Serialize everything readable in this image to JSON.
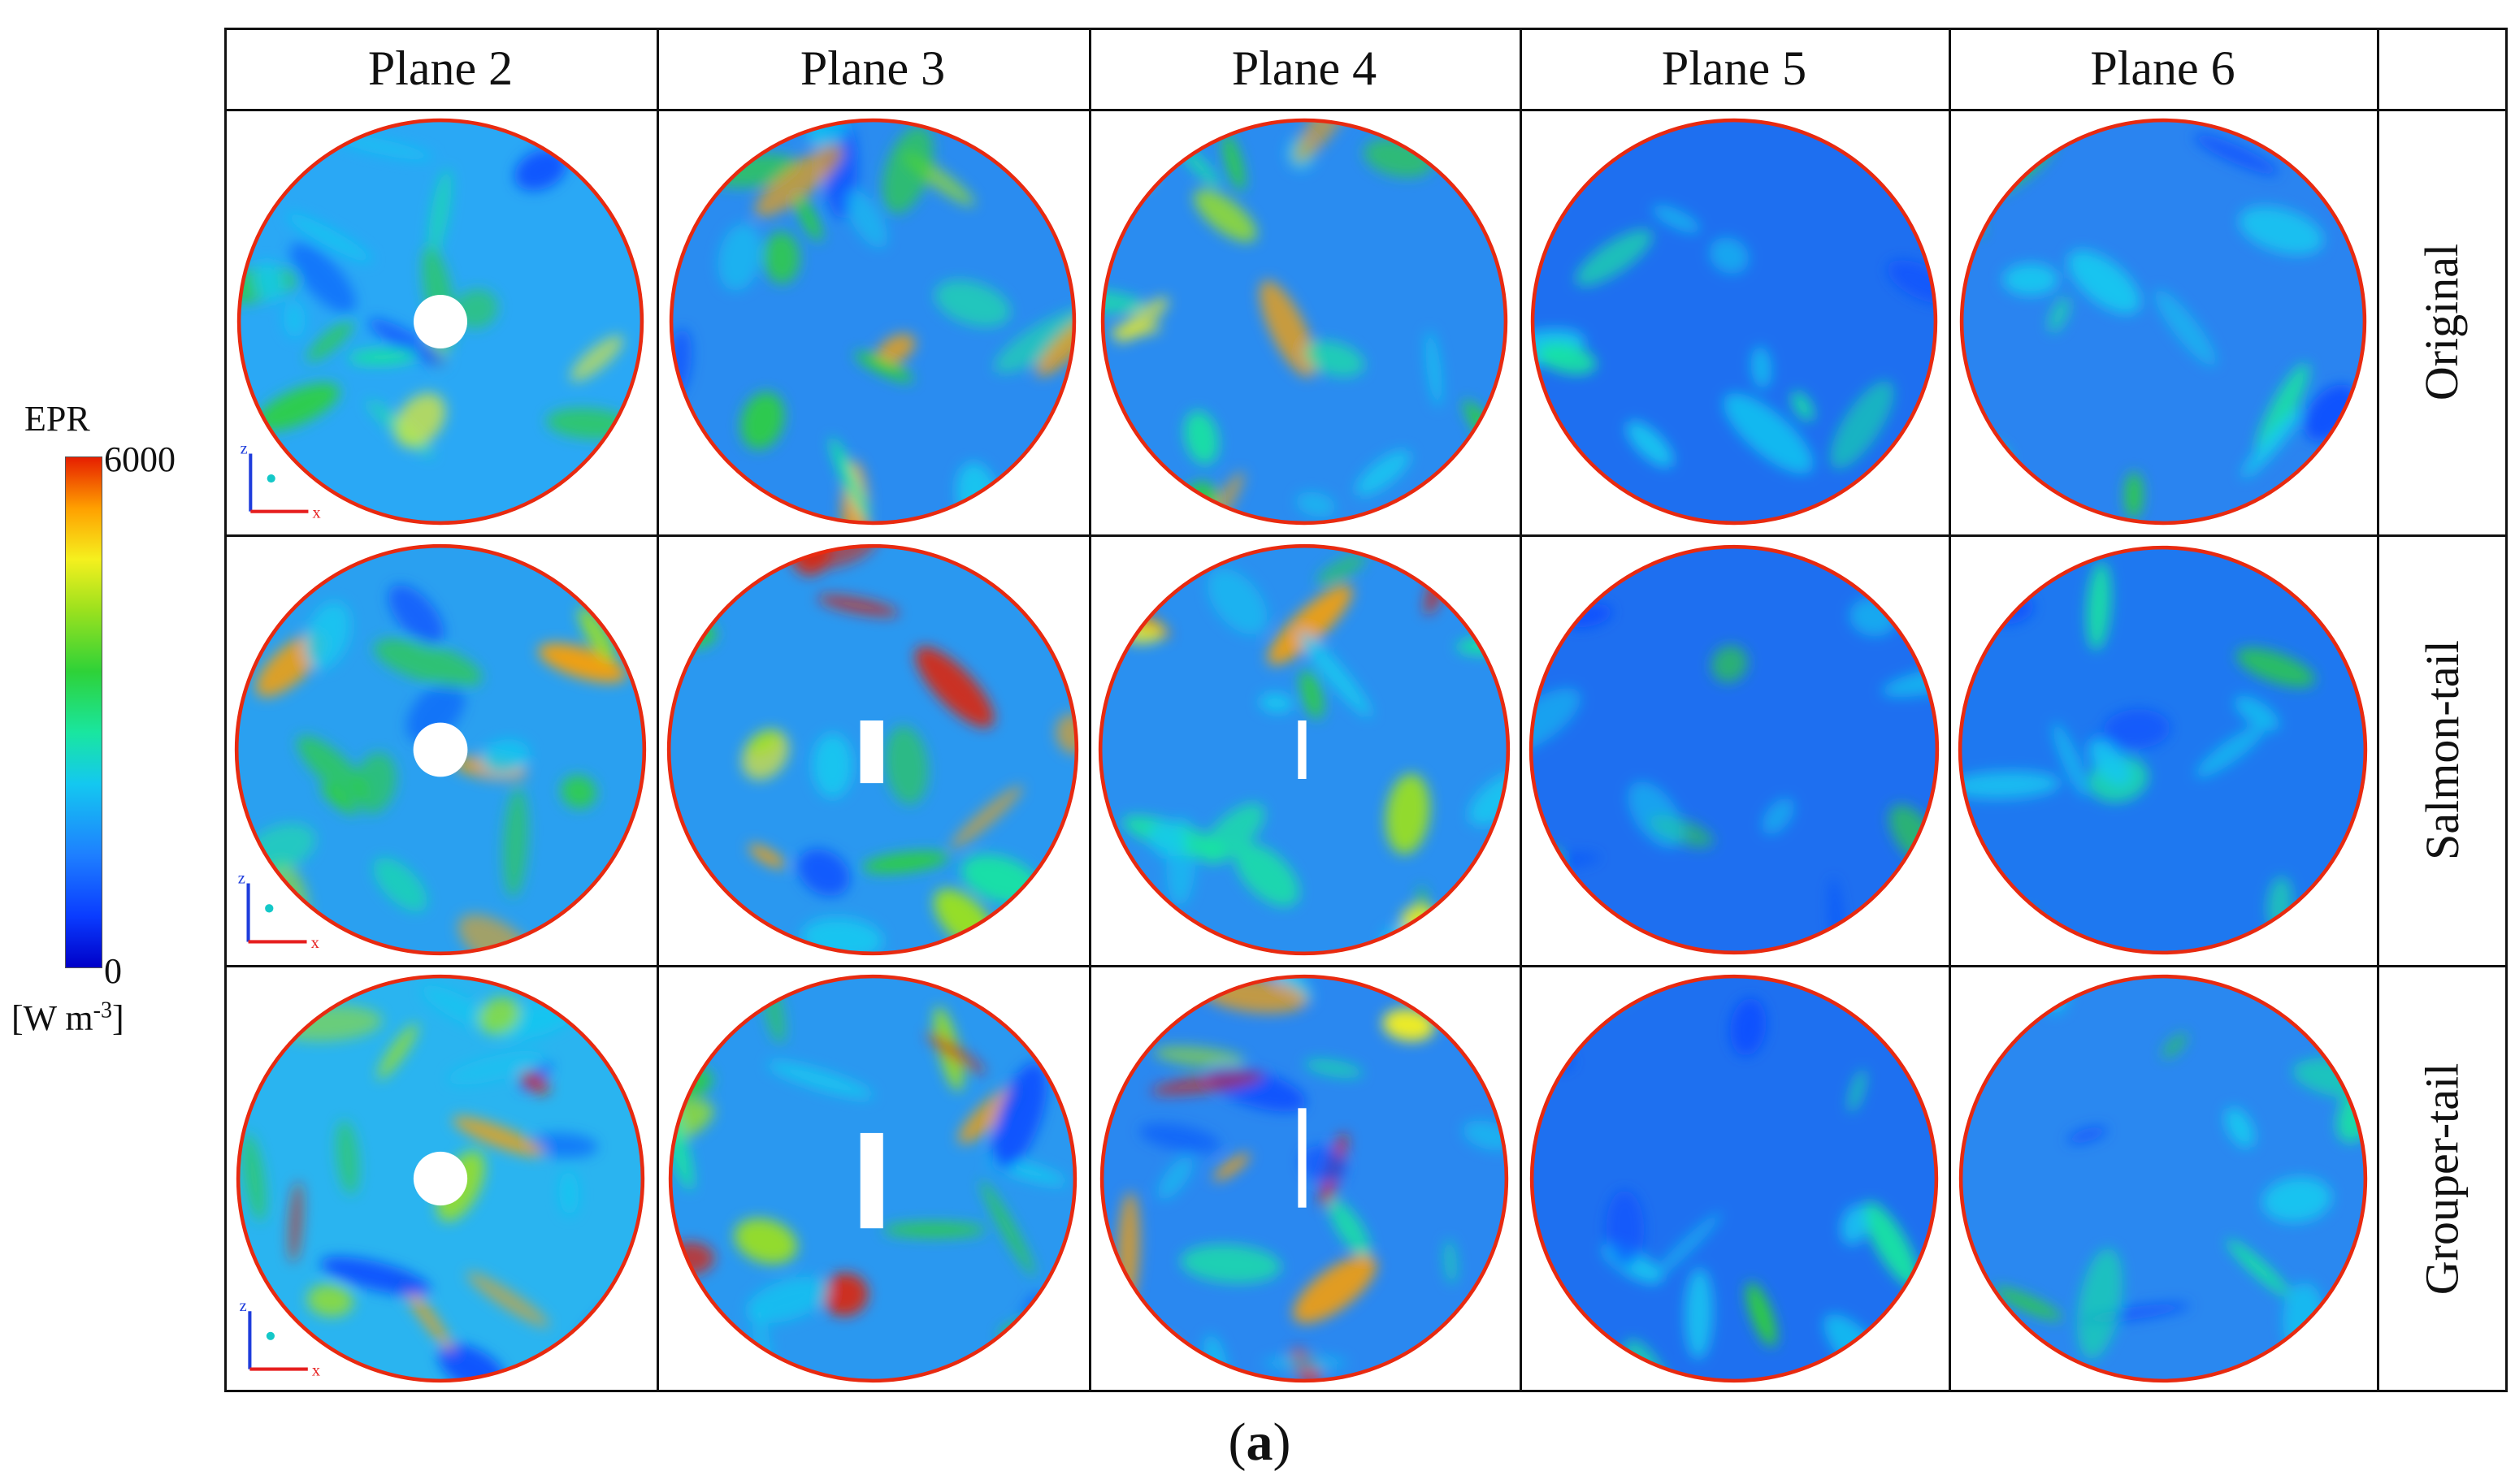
{
  "legend": {
    "title": "EPR",
    "max_label": "6000",
    "min_label": "0",
    "unit_prefix": "[W m",
    "unit_sup": "-3",
    "unit_suffix": "]",
    "colors": [
      "#0000c8",
      "#1e7fff",
      "#14c8f0",
      "#2ed238",
      "#f5f01e",
      "#ffa000",
      "#e61e00"
    ]
  },
  "columns": [
    "Plane 2",
    "Plane 3",
    "Plane 4",
    "Plane 5",
    "Plane 6"
  ],
  "rows": [
    "Original",
    "Salmon-tail",
    "Grouper-tail"
  ],
  "axis_labels": {
    "z": "z",
    "x": "x"
  },
  "caption": {
    "open": "(",
    "letter": "a",
    "close": ")"
  }
}
